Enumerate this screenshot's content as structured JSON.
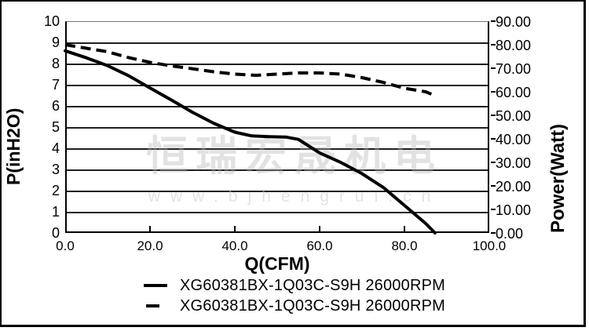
{
  "watermark": {
    "text": "恒瑞宏晟机电",
    "url": "www.bjhengrui.cn"
  },
  "chart_data": {
    "type": "line",
    "grid": "horizontal",
    "legend_position": "bottom",
    "line_color": "#000000",
    "x_axis": {
      "label": "Q(CFM)",
      "min": 0,
      "max": 100,
      "tick_values": [
        0,
        20,
        40,
        60,
        80,
        100
      ],
      "tick_labels": [
        "0.0",
        "20.0",
        "40.0",
        "60.0",
        "80.0",
        "100.0"
      ]
    },
    "left_axis": {
      "label": "P(inH2O)",
      "min": 0,
      "max": 10,
      "tick_values": [
        10,
        9,
        8,
        7,
        6,
        5,
        4,
        3,
        2,
        1,
        0
      ],
      "tick_labels": [
        "10",
        "9",
        "8",
        "7",
        "6",
        "5",
        "4",
        "3",
        "2",
        "1",
        "0"
      ]
    },
    "right_axis": {
      "label": "Power(Watt)",
      "min": 0,
      "max": 90,
      "tick_values": [
        90,
        80,
        70,
        60,
        50,
        40,
        30,
        20,
        10,
        0
      ],
      "tick_labels": [
        "90.00",
        "80.00",
        "70.00",
        "60.00",
        "50.00",
        "40.00",
        "30.00",
        "20.00",
        "10.00",
        "0.00"
      ]
    },
    "series": [
      {
        "name": "XG60381BX-1Q03C-S9H 26000RPM",
        "style": "solid",
        "axis": "left",
        "unit": "inH2O",
        "x": [
          0,
          5,
          10,
          15,
          20,
          25,
          30,
          35,
          40,
          44,
          48,
          52,
          55,
          60,
          65,
          70,
          75,
          80,
          85,
          87.2
        ],
        "y": [
          8.6,
          8.27,
          7.9,
          7.42,
          6.85,
          6.28,
          5.7,
          5.18,
          4.76,
          4.58,
          4.55,
          4.53,
          4.42,
          3.78,
          3.33,
          2.8,
          2.15,
          1.3,
          0.45,
          0.0
        ]
      },
      {
        "name": "XG60381BX-1Q03C-S9H 26000RPM",
        "style": "dashed",
        "axis": "right",
        "unit": "Watt",
        "x": [
          0,
          5,
          10,
          15,
          20,
          25,
          30,
          35,
          40,
          45,
          50,
          55,
          60,
          65,
          70,
          75,
          80,
          85,
          87
        ],
        "y": [
          80,
          78.5,
          77,
          74.5,
          72.5,
          71,
          69.8,
          68.5,
          67.5,
          67,
          67.5,
          68,
          68,
          67.5,
          66,
          64,
          61.5,
          60,
          58.5
        ]
      }
    ]
  }
}
